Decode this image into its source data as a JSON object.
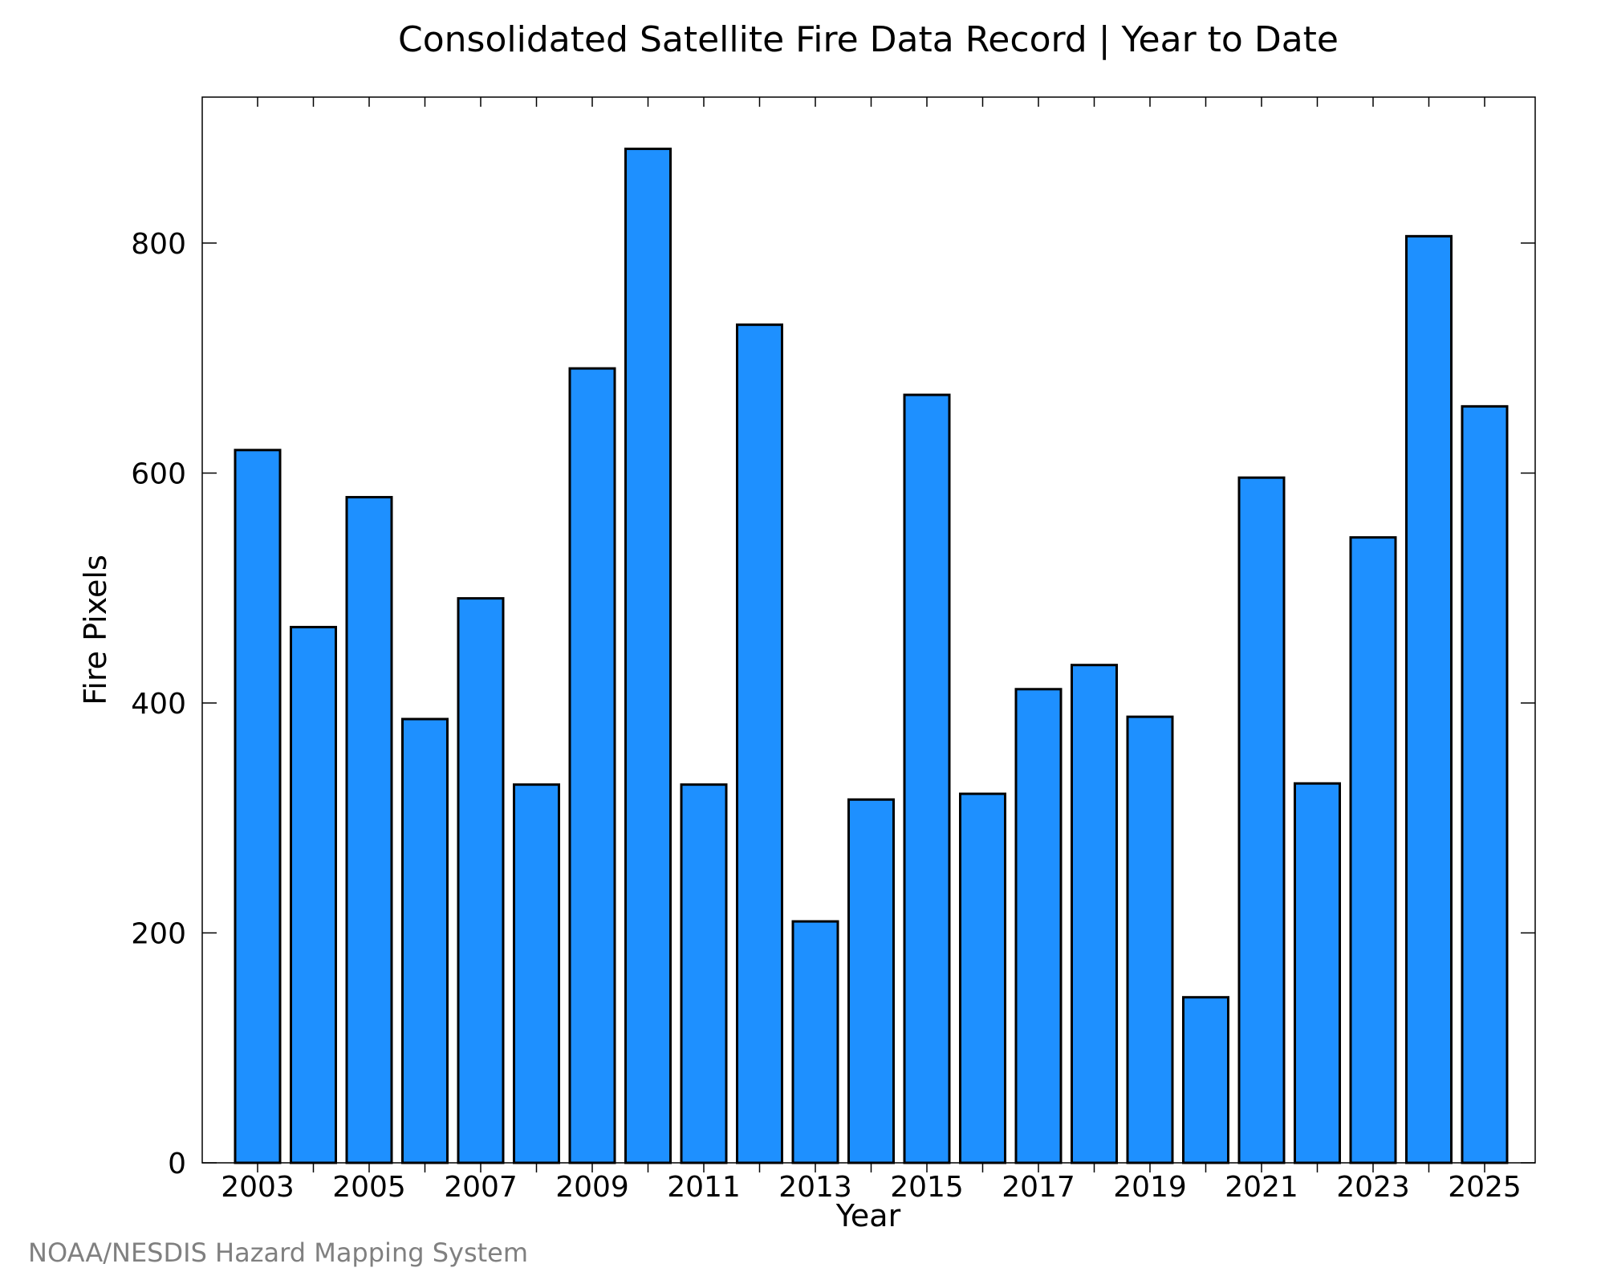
{
  "chart_data": {
    "type": "bar",
    "title": "Consolidated Satellite Fire Data Record | Year to Date",
    "xlabel": "Year",
    "ylabel": "Fire Pixels",
    "categories": [
      "2003",
      "2004",
      "2005",
      "2006",
      "2007",
      "2008",
      "2009",
      "2010",
      "2011",
      "2012",
      "2013",
      "2014",
      "2015",
      "2016",
      "2017",
      "2018",
      "2019",
      "2020",
      "2021",
      "2022",
      "2023",
      "2024",
      "2025"
    ],
    "values": [
      620,
      466,
      579,
      386,
      491,
      329,
      691,
      882,
      329,
      729,
      210,
      316,
      668,
      321,
      412,
      433,
      388,
      144,
      596,
      330,
      544,
      806,
      658
    ],
    "x_tick_labels": [
      "2003",
      "2005",
      "2007",
      "2009",
      "2011",
      "2013",
      "2015",
      "2017",
      "2019",
      "2021",
      "2023",
      "2025"
    ],
    "y_tick_labels": [
      "0",
      "200",
      "400",
      "600",
      "800"
    ],
    "y_ticks": [
      0,
      200,
      400,
      600,
      800
    ],
    "ylim": [
      0,
      927
    ],
    "grid": false,
    "bar_color": "#1e90ff",
    "bar_edge_color": "#000000"
  },
  "credit": "NOAA/NESDIS Hazard Mapping System"
}
